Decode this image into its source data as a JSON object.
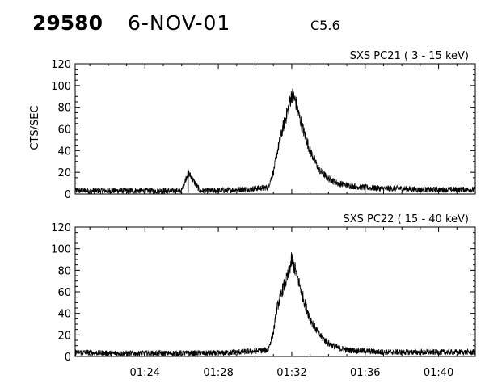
{
  "header": {
    "event_id": "29580",
    "date": "6-NOV-01",
    "flare_class": "C5.6"
  },
  "chart_data": [
    {
      "type": "line",
      "title": "SXS PC21  (  3 - 15 keV)",
      "ylabel": "CTS/SEC",
      "xlabel": "",
      "ylim": [
        0,
        120
      ],
      "yticks": [
        0,
        20,
        40,
        60,
        80,
        100,
        120
      ],
      "xlim_minutes": [
        20.2,
        42.0
      ],
      "xticks": [
        "01:24",
        "01:28",
        "01:32",
        "01:36",
        "01:40"
      ],
      "xticks_minutes": [
        24,
        28,
        32,
        36,
        40
      ],
      "x_minutes": [
        20.2,
        22.0,
        24.0,
        26.0,
        26.35,
        27.0,
        28.0,
        29.0,
        30.0,
        30.7,
        31.0,
        31.2,
        31.5,
        31.8,
        32.0,
        32.2,
        32.4,
        32.7,
        33.0,
        33.5,
        34.0,
        34.5,
        35.0,
        36.0,
        37.0,
        38.0,
        39.0,
        40.0,
        41.0,
        42.0
      ],
      "values": [
        3,
        3,
        3,
        3,
        20,
        3,
        3,
        4,
        5,
        6,
        20,
        38,
        60,
        78,
        92,
        86,
        72,
        55,
        40,
        22,
        14,
        10,
        8,
        6,
        5,
        5,
        4,
        4,
        4,
        4
      ],
      "spike_minute": 26.35,
      "spike_value": 20,
      "noise": 2.5
    },
    {
      "type": "line",
      "title": "SXS PC22  ( 15 - 40 keV)",
      "ylabel": "",
      "xlabel": "",
      "ylim": [
        0,
        120
      ],
      "yticks": [
        0,
        20,
        40,
        60,
        80,
        100,
        120
      ],
      "xlim_minutes": [
        20.2,
        42.0
      ],
      "xticks": [
        "01:24",
        "01:28",
        "01:32",
        "01:36",
        "01:40"
      ],
      "xticks_minutes": [
        24,
        28,
        32,
        36,
        40
      ],
      "x_minutes": [
        20.2,
        22.0,
        24.0,
        26.0,
        28.0,
        29.0,
        30.0,
        30.7,
        31.0,
        31.2,
        31.5,
        31.8,
        32.0,
        32.2,
        32.4,
        32.7,
        33.0,
        33.5,
        34.0,
        34.5,
        35.0,
        36.0,
        37.0,
        38.0,
        39.0,
        40.0,
        41.0,
        42.0
      ],
      "values": [
        4,
        3,
        3,
        3,
        3,
        4,
        5,
        6,
        22,
        45,
        62,
        75,
        90,
        80,
        68,
        50,
        35,
        20,
        12,
        8,
        6,
        5,
        4,
        4,
        4,
        4,
        4,
        4
      ],
      "noise": 2.5
    }
  ]
}
